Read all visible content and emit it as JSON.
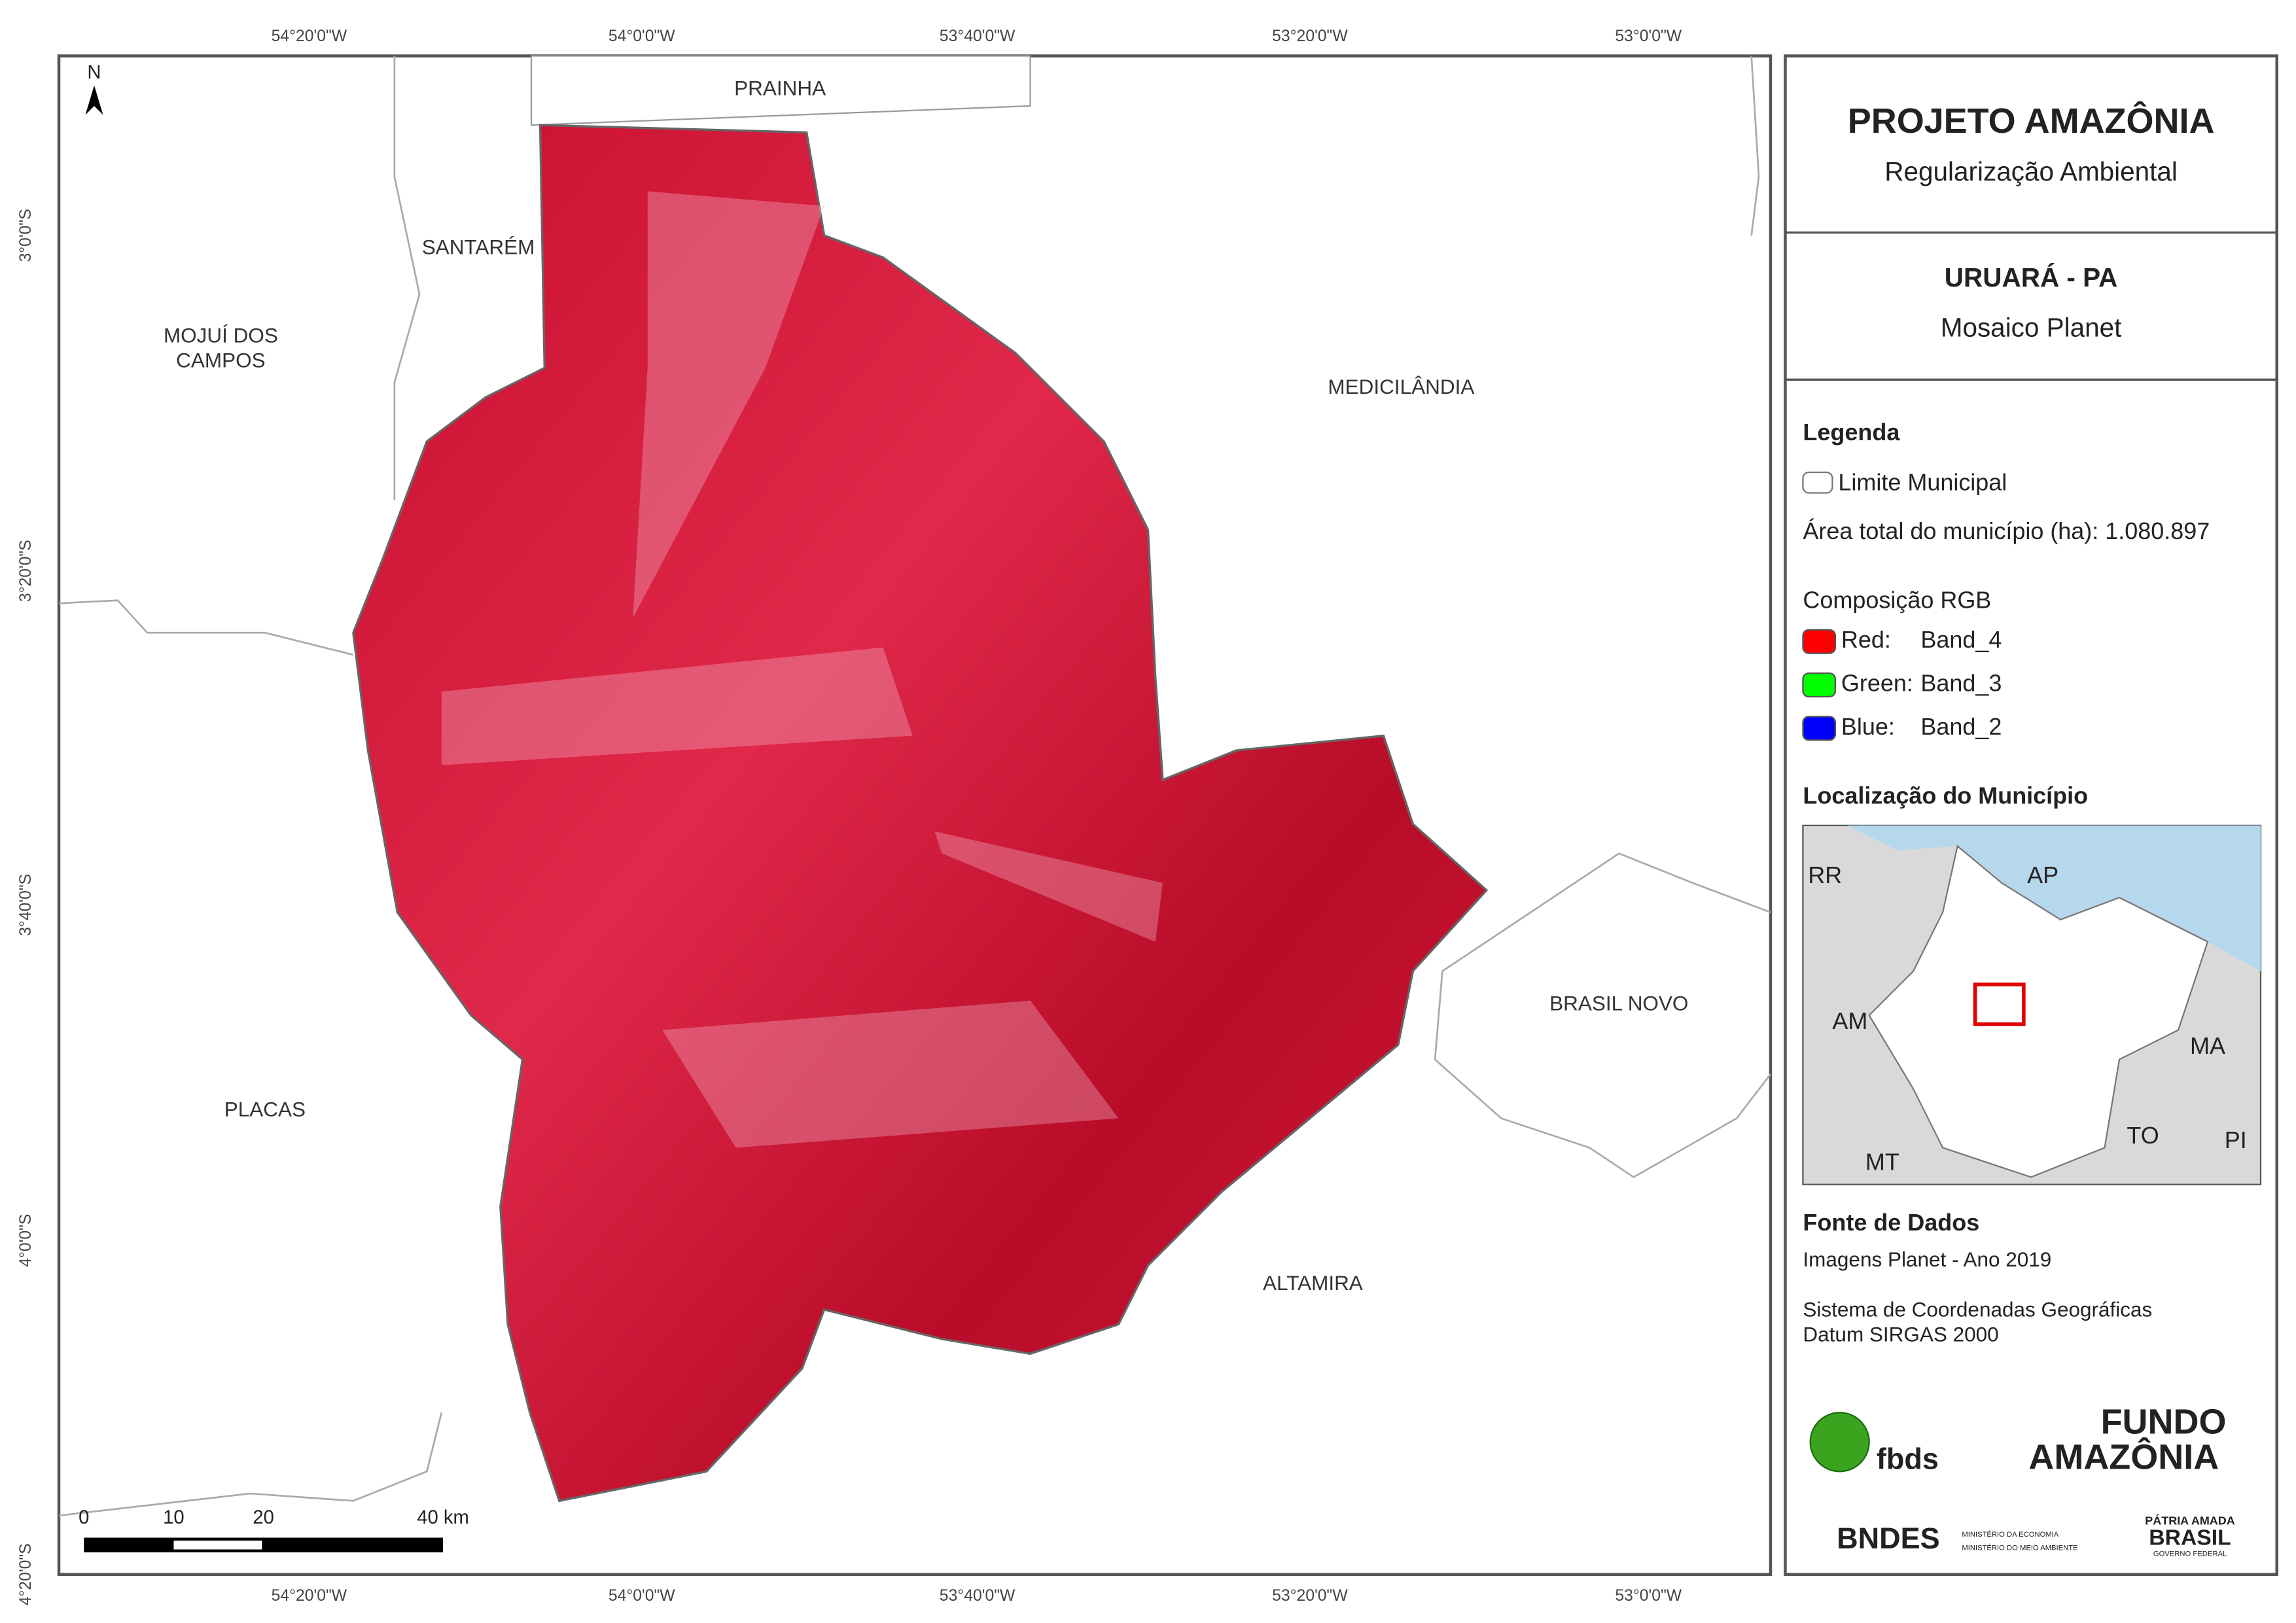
{
  "map": {
    "top_lon_labels": [
      "54°20'0\"W",
      "54°0'0\"W",
      "53°40'0\"W",
      "53°20'0\"W",
      "53°0'0\"W"
    ],
    "bottom_lon_labels": [
      "54°20'0\"W",
      "54°0'0\"W",
      "53°40'0\"W",
      "53°20'0\"W",
      "53°0'0\"W"
    ],
    "lat_labels": [
      "3°0'0\"S",
      "3°20'0\"S",
      "3°40'0\"S",
      "4°0'0\"S",
      "4°20'0\"S"
    ],
    "places": [
      {
        "lines": [
          "PRAINHA"
        ]
      },
      {
        "lines": [
          "SANTARÉM"
        ]
      },
      {
        "lines": [
          "MOJUÍ DOS",
          "CAMPOS"
        ]
      },
      {
        "lines": [
          "MEDICILÂNDIA"
        ]
      },
      {
        "lines": [
          "BRASIL NOVO"
        ]
      },
      {
        "lines": [
          "PLACAS"
        ]
      },
      {
        "lines": [
          "ALTAMIRA"
        ]
      }
    ],
    "north": "N",
    "scale_labels": [
      "0",
      "10",
      "20",
      "40 km"
    ]
  },
  "panel": {
    "title": "PROJETO AMAZÔNIA",
    "subtitle": "Regularização Ambiental",
    "municipality": "URUARÁ - PA",
    "product": "Mosaico Planet",
    "legend_title": "Legenda",
    "boundary_label": "Limite Municipal",
    "area_label": "Área total do município (ha): 1.080.897",
    "rgb_title": "Composição RGB",
    "rgb": [
      {
        "channel": "Red:",
        "band": "Band_4",
        "color": "#ff0000"
      },
      {
        "channel": "Green:",
        "band": "Band_3",
        "color": "#00ff00"
      },
      {
        "channel": "Blue:",
        "band": "Band_2",
        "color": "#0000ff"
      }
    ],
    "location_title": "Localização do Município",
    "states": [
      "RR",
      "AP",
      "AM",
      "MA",
      "TO",
      "MT",
      "PI"
    ],
    "sources_title": "Fonte de Dados",
    "source_lines": [
      "Imagens Planet - Ano 2019",
      "Sistema de Coordenadas Geográficas",
      "Datum SIRGAS 2000"
    ],
    "logos": {
      "fbds": "fbds",
      "fundo1": "FUNDO",
      "fundo2": "AMAZÔNIA",
      "bndes": "BNDES",
      "min1": "MINISTÉRIO DA ECONOMIA",
      "min2": "MINISTÉRIO DO MEIO AMBIENTE",
      "patria": "PÁTRIA AMADA",
      "brasil": "BRASIL",
      "gov": "GOVERNO FEDERAL"
    }
  }
}
